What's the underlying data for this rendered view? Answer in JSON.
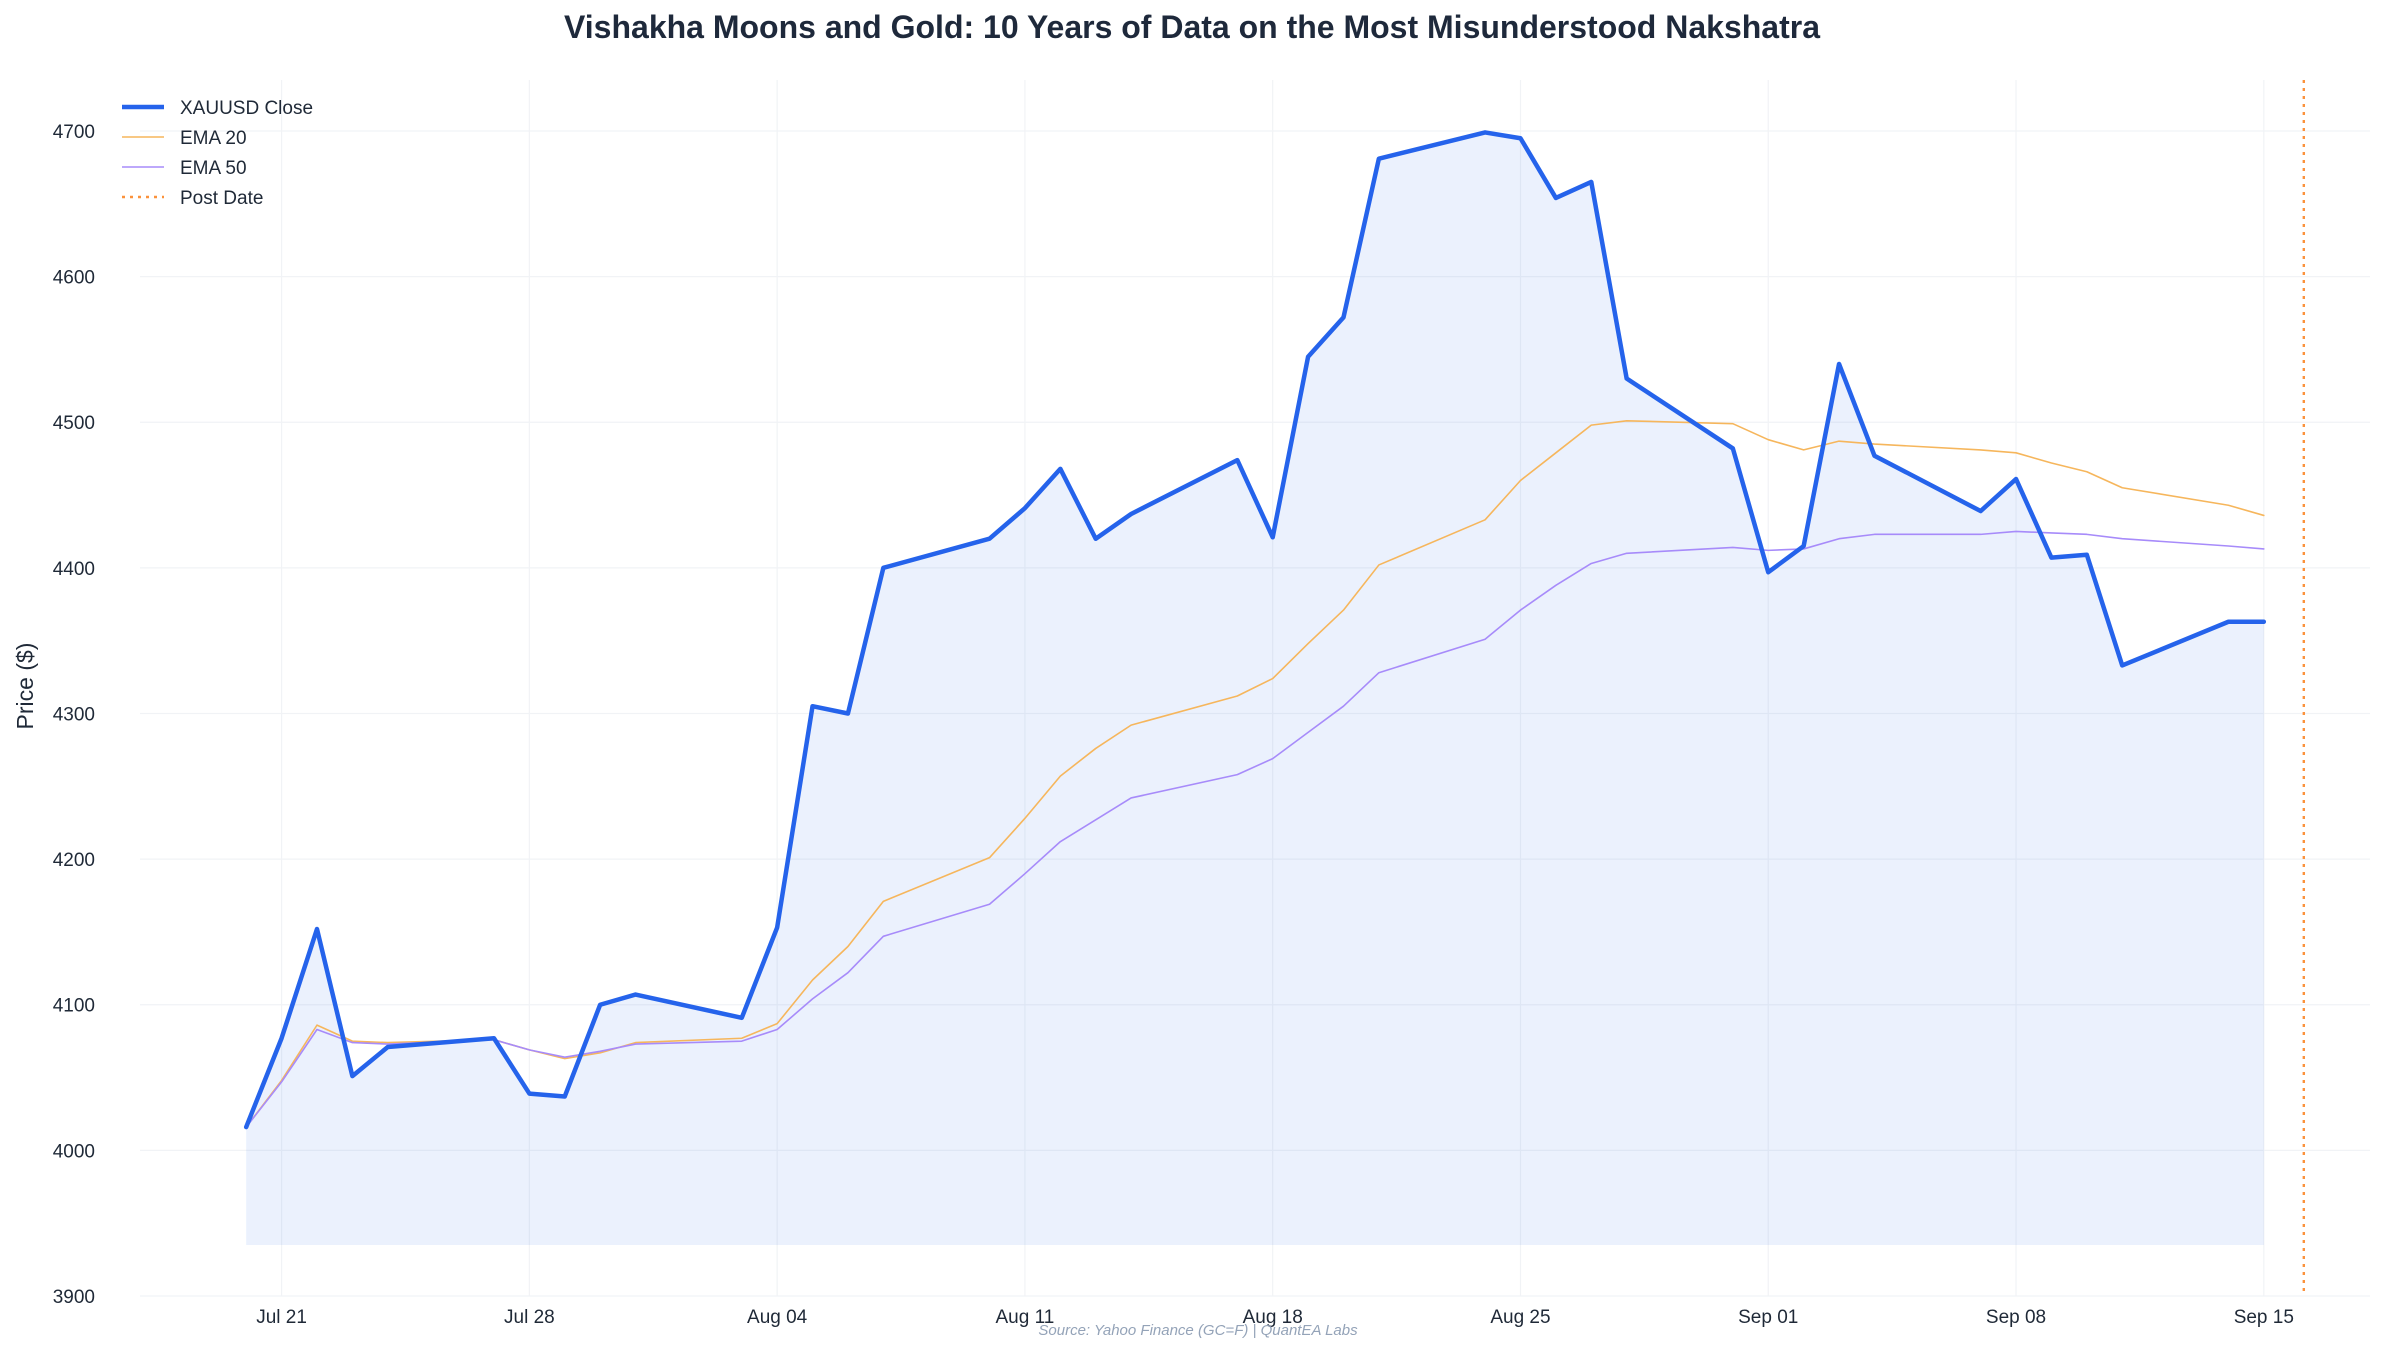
{
  "chart_data": {
    "type": "line",
    "title": "Vishakha Moons and Gold: 10 Years of Data on the Most Misunderstood Nakshatra",
    "xlabel": "",
    "ylabel": "Price ($)",
    "ylim": [
      3900,
      4735
    ],
    "xlim": [
      "2025-07-17",
      "2025-09-18"
    ],
    "y_ticks": [
      3900,
      4000,
      4100,
      4200,
      4300,
      4400,
      4500,
      4600,
      4700
    ],
    "x_ticks": [
      {
        "date": "2025-07-21",
        "label": "Jul 21"
      },
      {
        "date": "2025-07-28",
        "label": "Jul 28"
      },
      {
        "date": "2025-08-04",
        "label": "Aug 04"
      },
      {
        "date": "2025-08-11",
        "label": "Aug 11"
      },
      {
        "date": "2025-08-18",
        "label": "Aug 18"
      },
      {
        "date": "2025-08-25",
        "label": "Aug 25"
      },
      {
        "date": "2025-09-01",
        "label": "Sep 01"
      },
      {
        "date": "2025-09-08",
        "label": "Sep 08"
      },
      {
        "date": "2025-09-15",
        "label": "Sep 15"
      }
    ],
    "grid": true,
    "legend_position": "top-left",
    "fill_baseline": 3935,
    "x": [
      "2025-07-20",
      "2025-07-21",
      "2025-07-22",
      "2025-07-23",
      "2025-07-24",
      "2025-07-27",
      "2025-07-28",
      "2025-07-29",
      "2025-07-30",
      "2025-07-31",
      "2025-08-03",
      "2025-08-04",
      "2025-08-05",
      "2025-08-06",
      "2025-08-07",
      "2025-08-10",
      "2025-08-11",
      "2025-08-12",
      "2025-08-13",
      "2025-08-14",
      "2025-08-17",
      "2025-08-18",
      "2025-08-19",
      "2025-08-20",
      "2025-08-21",
      "2025-08-24",
      "2025-08-25",
      "2025-08-26",
      "2025-08-27",
      "2025-08-28",
      "2025-08-31",
      "2025-09-01",
      "2025-09-02",
      "2025-09-03",
      "2025-09-04",
      "2025-09-07",
      "2025-09-08",
      "2025-09-09",
      "2025-09-10",
      "2025-09-11",
      "2025-09-14",
      "2025-09-15"
    ],
    "series": [
      {
        "name": "XAUUSD Close",
        "color": "#2563eb",
        "style": "solid",
        "values": [
          4016,
          4077,
          4152,
          4051,
          4071,
          4077,
          4039,
          4037,
          4100,
          4107,
          4091,
          4153,
          4305,
          4300,
          4400,
          4420,
          4441,
          4468,
          4420,
          4437,
          4474,
          4421,
          4545,
          4572,
          4681,
          4699,
          4695,
          4654,
          4665,
          4530,
          4482,
          4397,
          4415,
          4540,
          4477,
          4439,
          4461,
          4407,
          4409,
          4333,
          4363,
          4363
        ]
      },
      {
        "name": "EMA 20",
        "color": "#f6b65c",
        "style": "solid",
        "values": [
          4016,
          4048,
          4086,
          4075,
          4074,
          4076,
          4069,
          4063,
          4067,
          4074,
          4077,
          4087,
          4117,
          4140,
          4171,
          4201,
          4228,
          4257,
          4276,
          4292,
          4312,
          4324,
          4348,
          4371,
          4402,
          4433,
          4460,
          4479,
          4498,
          4501,
          4499,
          4488,
          4481,
          4487,
          4485,
          4481,
          4479,
          4472,
          4466,
          4455,
          4443,
          4436
        ]
      },
      {
        "name": "EMA 50",
        "color": "#a78bfa",
        "style": "solid",
        "values": [
          4016,
          4047,
          4083,
          4074,
          4073,
          4076,
          4069,
          4064,
          4068,
          4073,
          4075,
          4083,
          4104,
          4122,
          4147,
          4169,
          4190,
          4212,
          4227,
          4242,
          4258,
          4269,
          4287,
          4305,
          4328,
          4351,
          4371,
          4388,
          4403,
          4410,
          4414,
          4412,
          4413,
          4420,
          4423,
          4423,
          4425,
          4424,
          4423,
          4420,
          4415,
          4413
        ]
      }
    ],
    "post_date": {
      "name": "Post Date",
      "date": "2025-09-15",
      "color": "#fb923c",
      "style": "dotted"
    },
    "source": "Source: Yahoo Finance (GC=F) | QuantEA Labs"
  }
}
